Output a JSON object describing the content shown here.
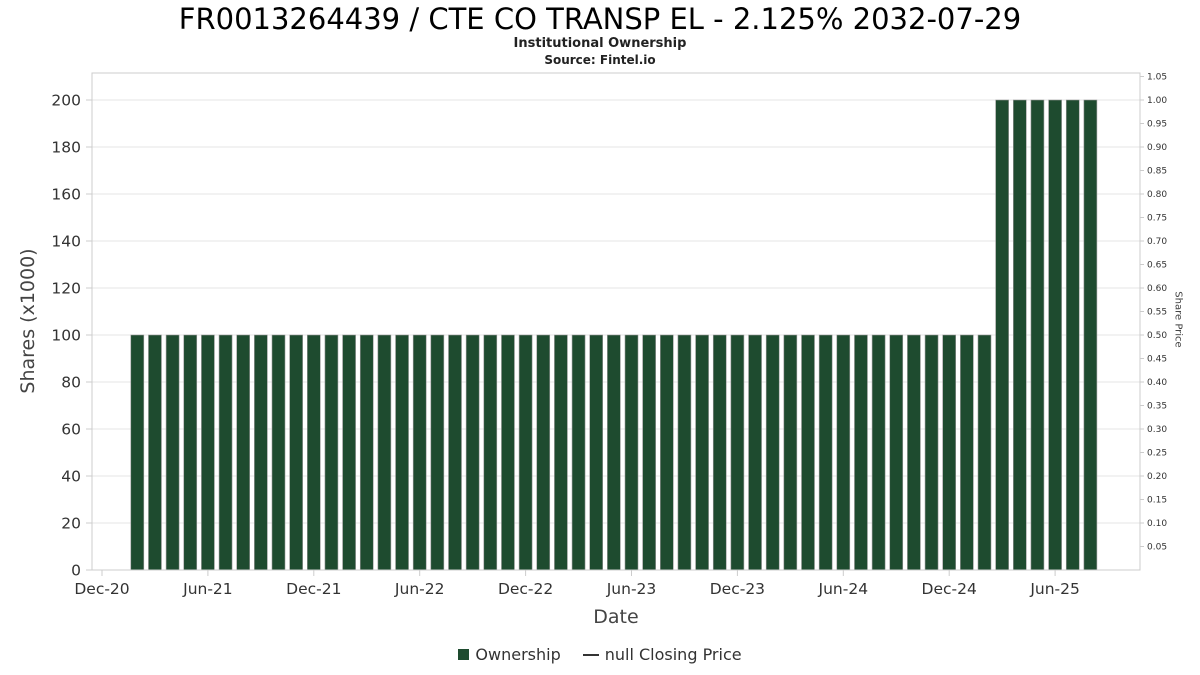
{
  "chart_data": {
    "type": "bar",
    "title": "FR0013264439 / CTE CO TRANSP EL - 2.125% 2032-07-29",
    "subtitle": "Institutional Ownership",
    "source": "Source: Fintel.io",
    "xlabel": "Date",
    "ylabel_left": "Shares (x1000)",
    "ylabel_right": "Share Price",
    "ylim_left": [
      0,
      210
    ],
    "ylim_right": [
      0,
      1.05
    ],
    "grid": true,
    "legend_position": "bottom",
    "y_ticks_left": [
      0,
      20,
      40,
      60,
      80,
      100,
      120,
      140,
      160,
      180,
      200
    ],
    "y_ticks_right": [
      0.05,
      0.1,
      0.15,
      0.2,
      0.25,
      0.3,
      0.35,
      0.4,
      0.45,
      0.5,
      0.55,
      0.6,
      0.65,
      0.7,
      0.75,
      0.8,
      0.85,
      0.9,
      0.95,
      1.0,
      1.05
    ],
    "x_ticks": [
      {
        "label": "Dec-20",
        "month": "2020-12"
      },
      {
        "label": "Jun-21",
        "month": "2021-06"
      },
      {
        "label": "Dec-21",
        "month": "2021-12"
      },
      {
        "label": "Jun-22",
        "month": "2022-06"
      },
      {
        "label": "Dec-22",
        "month": "2022-12"
      },
      {
        "label": "Jun-23",
        "month": "2023-06"
      },
      {
        "label": "Dec-23",
        "month": "2023-12"
      },
      {
        "label": "Jun-24",
        "month": "2024-06"
      },
      {
        "label": "Dec-24",
        "month": "2024-12"
      },
      {
        "label": "Jun-25",
        "month": "2025-06"
      }
    ],
    "series": [
      {
        "name": "Ownership",
        "color": "#1e4b2f",
        "months": [
          "2021-02",
          "2021-03",
          "2021-04",
          "2021-05",
          "2021-06",
          "2021-07",
          "2021-08",
          "2021-09",
          "2021-10",
          "2021-11",
          "2021-12",
          "2022-01",
          "2022-02",
          "2022-03",
          "2022-04",
          "2022-05",
          "2022-06",
          "2022-07",
          "2022-08",
          "2022-09",
          "2022-10",
          "2022-11",
          "2022-12",
          "2023-01",
          "2023-02",
          "2023-03",
          "2023-04",
          "2023-05",
          "2023-06",
          "2023-07",
          "2023-08",
          "2023-09",
          "2023-10",
          "2023-11",
          "2023-12",
          "2024-01",
          "2024-02",
          "2024-03",
          "2024-04",
          "2024-05",
          "2024-06",
          "2024-07",
          "2024-08",
          "2024-09",
          "2024-10",
          "2024-11",
          "2024-12",
          "2025-01",
          "2025-02",
          "2025-03",
          "2025-04",
          "2025-05",
          "2025-06",
          "2025-07",
          "2025-08"
        ],
        "values": [
          100,
          100,
          100,
          100,
          100,
          100,
          100,
          100,
          100,
          100,
          100,
          100,
          100,
          100,
          100,
          100,
          100,
          100,
          100,
          100,
          100,
          100,
          100,
          100,
          100,
          100,
          100,
          100,
          100,
          100,
          100,
          100,
          100,
          100,
          100,
          100,
          100,
          100,
          100,
          100,
          100,
          100,
          100,
          100,
          100,
          100,
          100,
          100,
          100,
          200,
          200,
          200,
          200,
          200,
          200
        ]
      }
    ],
    "legend": [
      {
        "label": "Ownership",
        "marker": "square"
      },
      {
        "label": "null Closing Price",
        "marker": "line"
      }
    ],
    "colors": {
      "bar": "#1e4b2f",
      "grid": "#e6e6e6",
      "plot_border": "#cccccc",
      "tick": "#cccccc",
      "tick_text": "#333333"
    }
  }
}
